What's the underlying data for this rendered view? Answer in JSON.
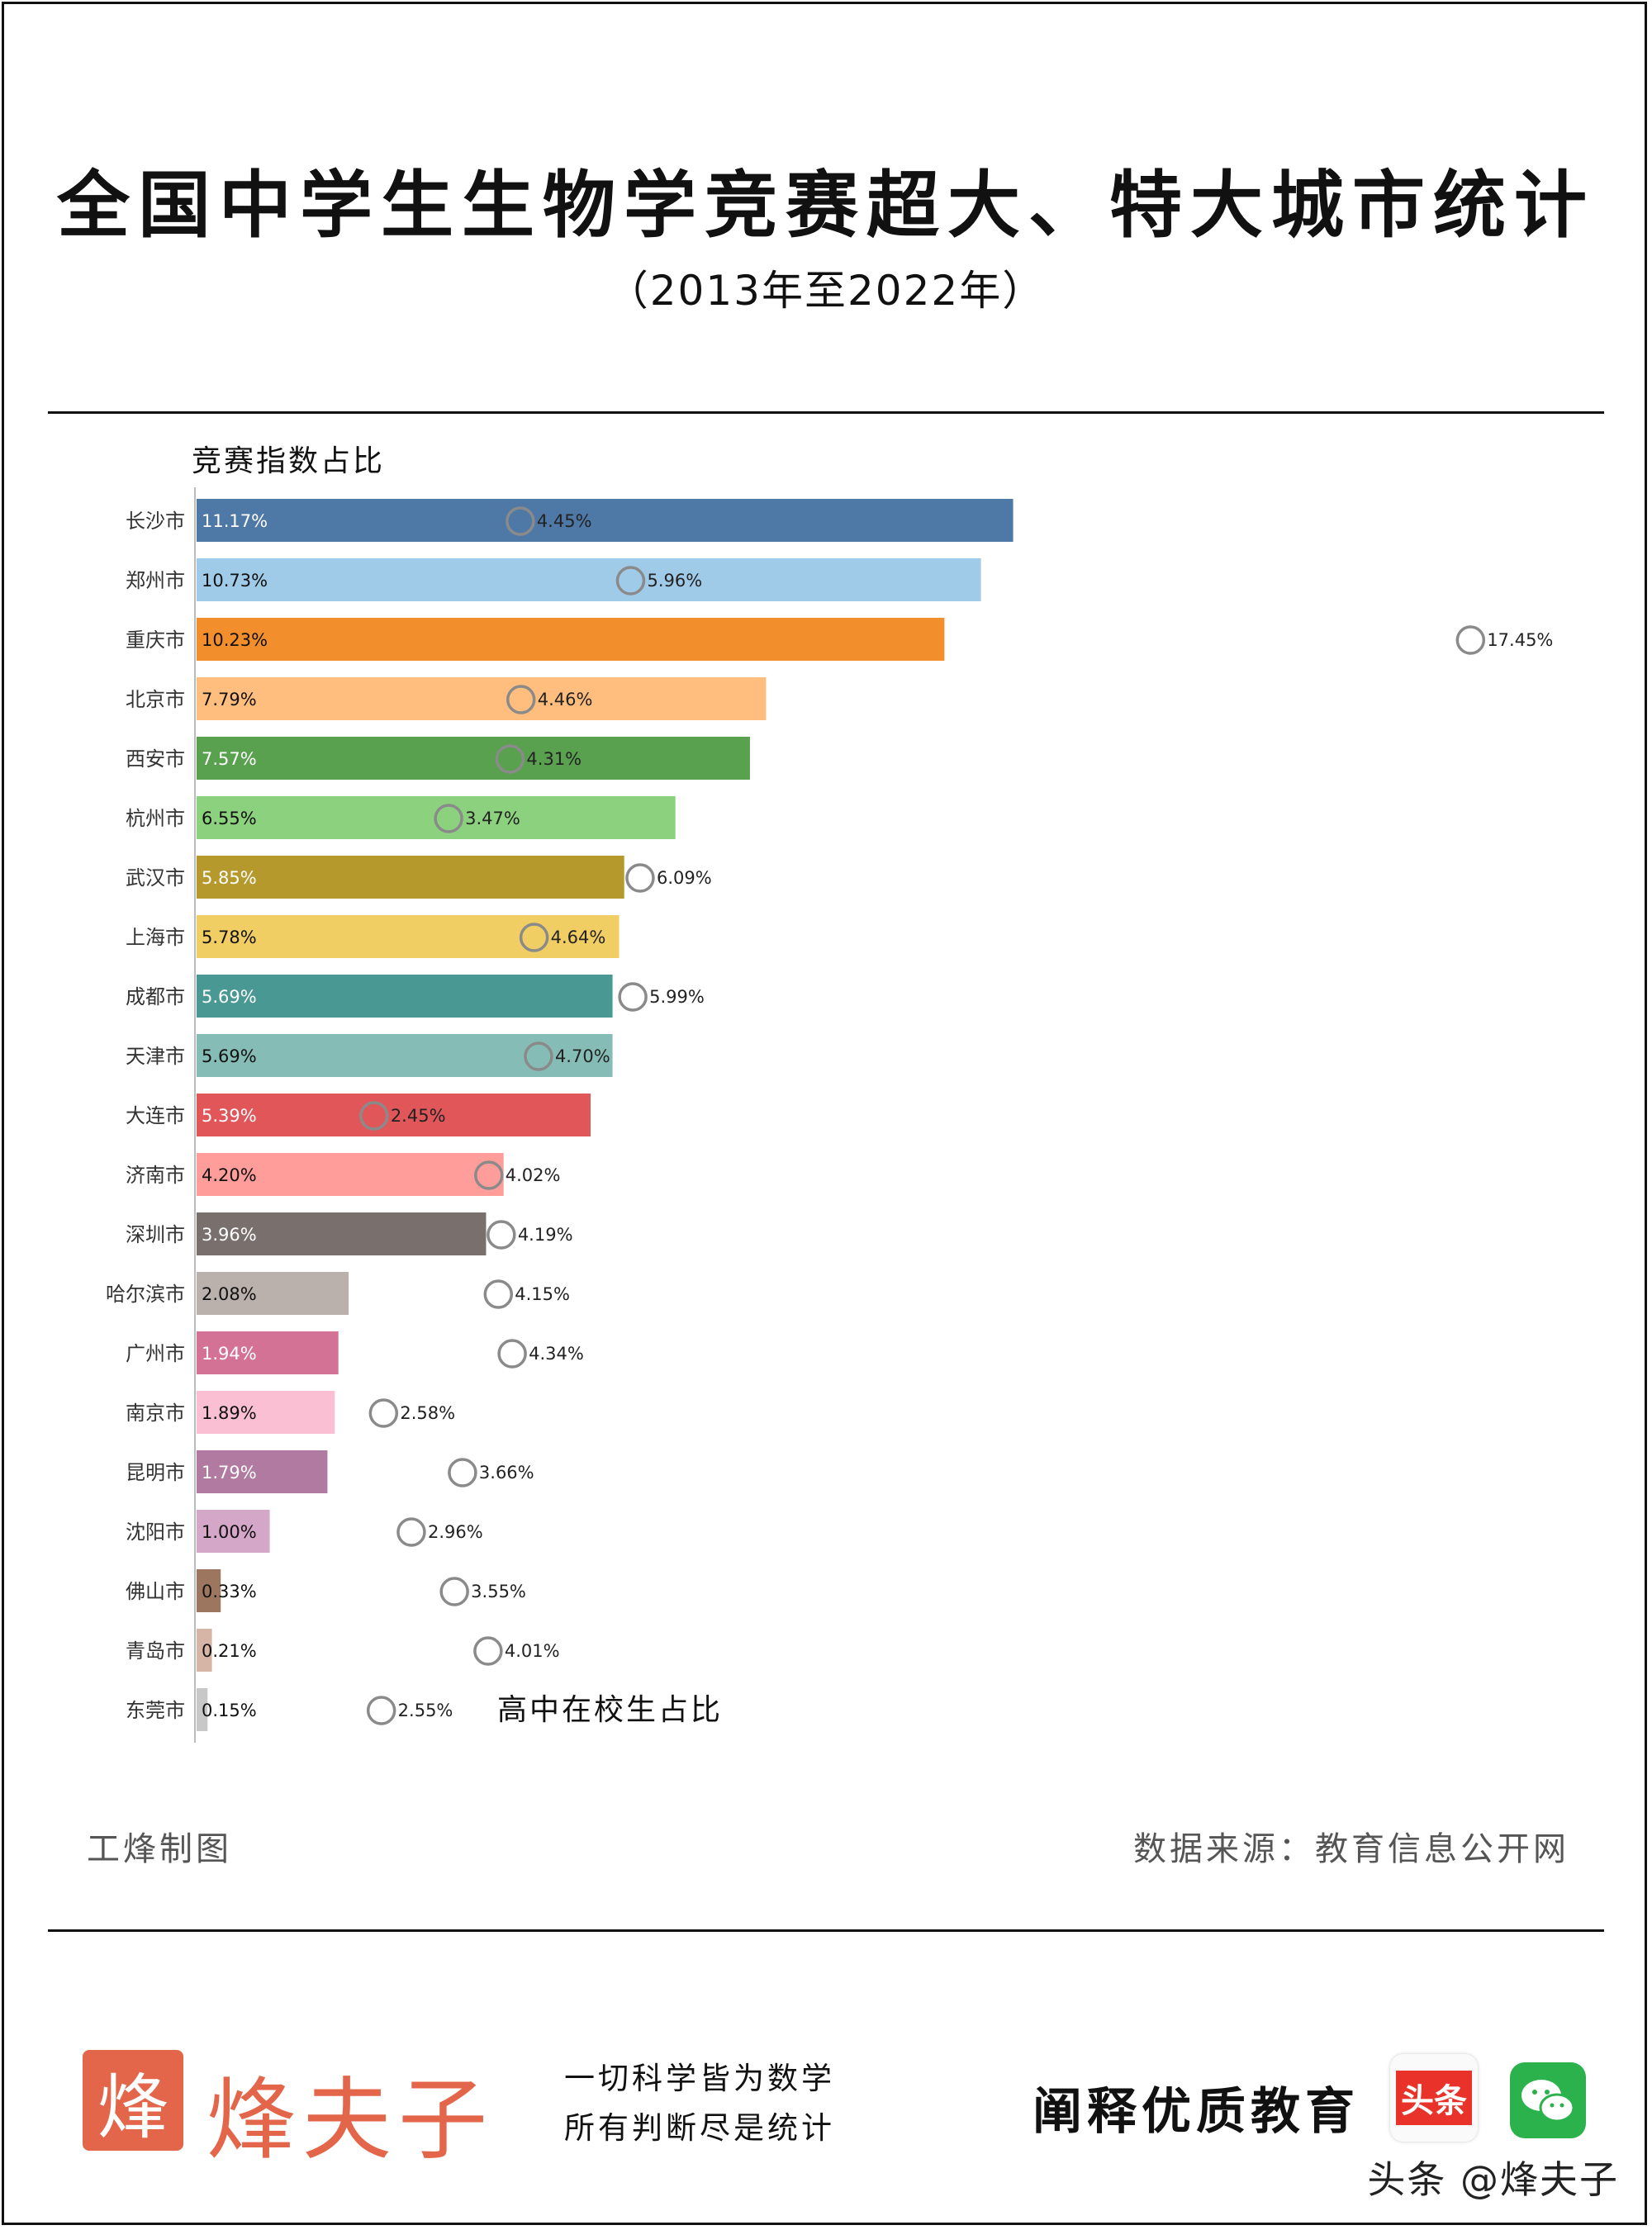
{
  "header": {
    "title": "全国中学生生物学竞赛超大、特大城市统计",
    "subtitle": "（2013年至2022年）"
  },
  "chart_data": {
    "type": "bar",
    "orientation": "horizontal",
    "bar_series_label": "竞赛指数占比",
    "marker_series_label": "高中在校生占比",
    "categories": [
      "长沙市",
      "郑州市",
      "重庆市",
      "北京市",
      "西安市",
      "杭州市",
      "武汉市",
      "上海市",
      "成都市",
      "天津市",
      "大连市",
      "济南市",
      "深圳市",
      "哈尔滨市",
      "广州市",
      "南京市",
      "昆明市",
      "沈阳市",
      "佛山市",
      "青岛市",
      "东莞市"
    ],
    "series": [
      {
        "name": "竞赛指数占比",
        "mark": "bar",
        "values": [
          11.17,
          10.73,
          10.23,
          7.79,
          7.57,
          6.55,
          5.85,
          5.78,
          5.69,
          5.69,
          5.39,
          4.2,
          3.96,
          2.08,
          1.94,
          1.89,
          1.79,
          1.0,
          0.33,
          0.21,
          0.15
        ]
      },
      {
        "name": "高中在校生占比",
        "mark": "circle",
        "values": [
          4.45,
          5.96,
          17.45,
          4.46,
          4.31,
          3.47,
          6.09,
          4.64,
          5.99,
          4.7,
          2.45,
          4.02,
          4.19,
          4.15,
          4.34,
          2.58,
          3.66,
          2.96,
          3.55,
          4.01,
          2.55
        ]
      }
    ],
    "bar_colors": [
      "#4e79a7",
      "#a0cbe8",
      "#f28e2b",
      "#ffbe7d",
      "#59a14f",
      "#8cd17d",
      "#b6992d",
      "#f1ce63",
      "#499894",
      "#86bcb6",
      "#e15759",
      "#ff9d9a",
      "#79706e",
      "#bab0ac",
      "#d37295",
      "#fabfd2",
      "#b07aa1",
      "#d4a6c8",
      "#9d7660",
      "#d7b5a6",
      "#c8c8c8"
    ],
    "label_colors": [
      "#ffffff",
      "#111111",
      "#111111",
      "#111111",
      "#ffffff",
      "#111111",
      "#ffffff",
      "#111111",
      "#ffffff",
      "#111111",
      "#ffffff",
      "#111111",
      "#ffffff",
      "#111111",
      "#ffffff",
      "#111111",
      "#ffffff",
      "#111111",
      "#111111",
      "#111111",
      "#111111"
    ],
    "value_suffix": "%",
    "xlim": [
      0,
      18
    ],
    "grid": false
  },
  "footer": {
    "author": "工烽制图",
    "source": "数据来源：教育信息公开网"
  },
  "branding": {
    "logo_char": "烽",
    "logo_name": "烽夫子",
    "slogan_line1": "一切科学皆为数学",
    "slogan_line2": "所有判断尽是统计",
    "tagline": "阐释优质教育",
    "toutiao_badge": "头条",
    "watermark": "头条 @烽夫子"
  }
}
